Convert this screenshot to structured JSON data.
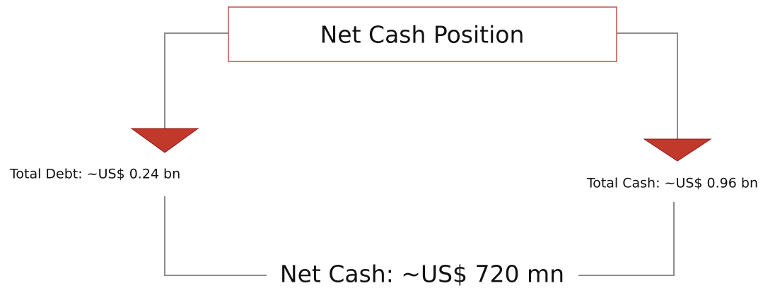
{
  "title": "Net Cash Position",
  "nodes": [
    {
      "label": "Total Debt: ~US$ 0.24 bn"
    },
    {
      "label": "Total Cash: ~US$ 0.96 bn"
    }
  ],
  "result": {
    "label": "Net Cash: ~US$ 720 mn"
  }
}
